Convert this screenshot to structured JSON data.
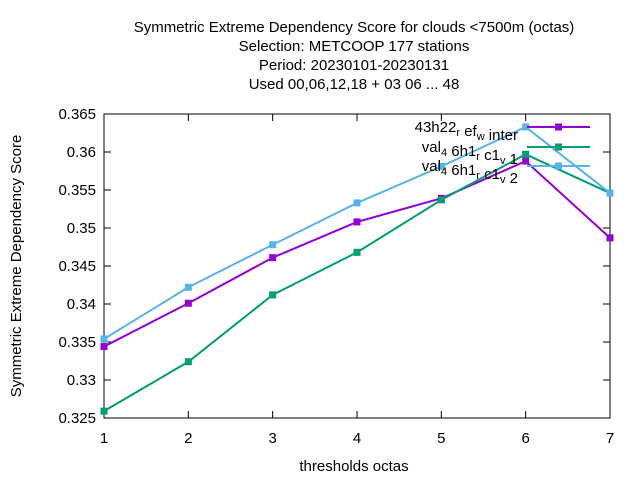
{
  "chart_data": {
    "type": "line",
    "title_lines": [
      "Symmetric Extreme Dependency Score  for clouds <7500m (octas)",
      "Selection: METCOOP    177 stations",
      "Period: 20230101-20230131",
      "Used  00,06,12,18  + 03 06 ... 48"
    ],
    "xlabel": "thresholds octas",
    "ylabel": "Symmetric Extreme Dependency Score",
    "x": [
      1,
      2,
      3,
      4,
      5,
      6,
      7
    ],
    "xlim": [
      1,
      7
    ],
    "ylim": [
      0.325,
      0.365
    ],
    "x_ticks": [
      "1",
      "2",
      "3",
      "4",
      "5",
      "6",
      "7"
    ],
    "y_ticks": [
      "0.325",
      "0.33",
      "0.335",
      "0.34",
      "0.345",
      "0.35",
      "0.355",
      "0.36",
      "0.365"
    ],
    "grid": false,
    "legend_position": "top-right",
    "series": [
      {
        "name": "43h22 _r ef _w inter",
        "color": "#9400d3",
        "values": [
          0.3344,
          0.3401,
          0.3461,
          0.3508,
          0.3539,
          0.3588,
          0.3487
        ]
      },
      {
        "name": "val _4 6h1 _r c1 _v 1",
        "color": "#009e73",
        "values": [
          0.3259,
          0.3324,
          0.3412,
          0.3468,
          0.3537,
          0.3597,
          0.3546
        ]
      },
      {
        "name": "val _4 6h1 _r c1 _v 2",
        "color": "#56b4e9",
        "values": [
          0.3354,
          0.3422,
          0.3478,
          0.3533,
          0.3581,
          0.3633,
          0.3546
        ]
      }
    ]
  }
}
